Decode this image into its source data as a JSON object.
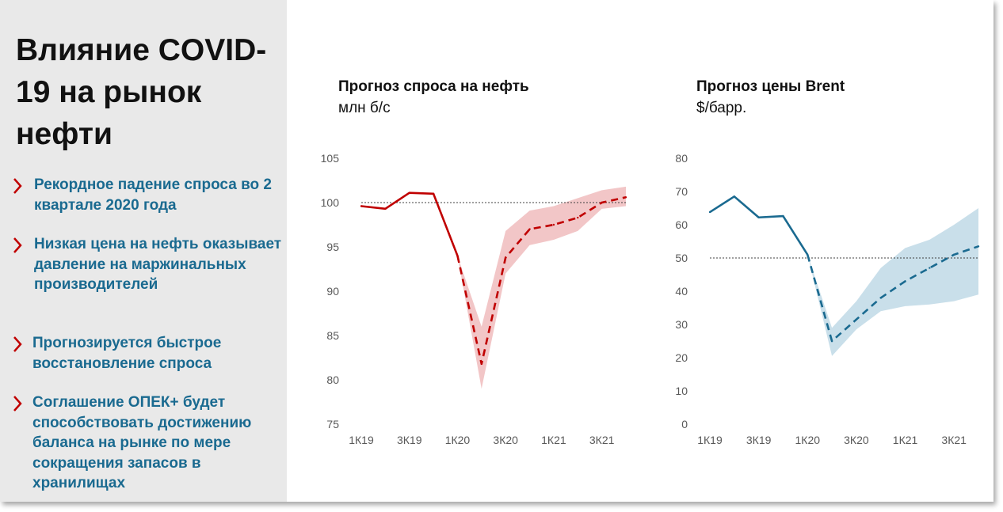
{
  "slide": {
    "title": "Влияние COVID-19 на рынок нефти",
    "bullets": [
      {
        "text": "Рекордное падение спроса во 2 квартале 2020 года"
      },
      {
        "text": "Низкая цена на нефть оказывает давление на маржинальных производителей"
      },
      {
        "text": "Прогнозируется быстрое восстановление спроса"
      },
      {
        "text": "Соглашение ОПЕК+ будет способствовать достижению баланса на рынке по мере сокращения запасов в хранилищах"
      }
    ],
    "colors": {
      "accent": "#c00000",
      "bullet_text": "#1a6a90",
      "panel": "#e9e9e9"
    },
    "bullet_icon": "chevron-right-icon"
  },
  "chart_data": [
    {
      "type": "line",
      "title": "Прогноз спроса на нефть",
      "unit": "млн б/с",
      "x": [
        "1К19",
        "2К19",
        "3К19",
        "4К19",
        "1К20",
        "2К20",
        "3К20",
        "4К20",
        "1К21",
        "2К21",
        "3К21",
        "4К21"
      ],
      "tick_labels": [
        "1К19",
        "",
        "3К19",
        "",
        "1К20",
        "",
        "3К20",
        "",
        "1К21",
        "",
        "3К21",
        ""
      ],
      "series": [
        {
          "values": [
            99.6,
            99.3,
            101.1,
            101.0,
            94.0,
            81.8,
            93.8,
            97.0,
            97.5,
            98.3,
            100.0,
            100.6
          ]
        }
      ],
      "actual_count": 5,
      "band": {
        "upper": [
          null,
          null,
          null,
          null,
          94.0,
          86.0,
          96.8,
          99.1,
          99.6,
          100.5,
          101.4,
          101.8
        ],
        "lower": [
          null,
          null,
          null,
          null,
          94.0,
          79.0,
          92.0,
          95.2,
          95.8,
          96.8,
          99.3,
          99.6
        ]
      },
      "reference_line": 100,
      "ylim": [
        75,
        105
      ],
      "yticks": [
        75,
        80,
        85,
        90,
        95,
        100,
        105
      ],
      "colors": {
        "line": "#c00000",
        "band": "#f2c6c7"
      },
      "grid": false,
      "legend": "none"
    },
    {
      "type": "line",
      "title": "Прогноз цены Brent",
      "unit": "$/барр.",
      "x": [
        "1К19",
        "2К19",
        "3К19",
        "4К19",
        "1К20",
        "2К20",
        "3К20",
        "4К20",
        "1К21",
        "2К21",
        "3К21",
        "4К21"
      ],
      "tick_labels": [
        "1К19",
        "",
        "3К19",
        "",
        "1К20",
        "",
        "3К20",
        "",
        "1К21",
        "",
        "3К21",
        ""
      ],
      "series": [
        {
          "values": [
            63.8,
            68.5,
            62.2,
            62.6,
            51.0,
            25.0,
            31.5,
            38.0,
            43.0,
            47.0,
            51.0,
            53.5
          ]
        }
      ],
      "actual_count": 5,
      "band": {
        "upper": [
          null,
          null,
          null,
          null,
          51.0,
          29.0,
          37.0,
          47.0,
          53.0,
          55.5,
          60.0,
          65.0
        ],
        "lower": [
          null,
          null,
          null,
          null,
          51.0,
          20.5,
          28.5,
          34.0,
          35.5,
          36.0,
          37.0,
          39.0
        ]
      },
      "reference_line": 50,
      "ylim": [
        0,
        80
      ],
      "yticks": [
        0,
        10,
        20,
        30,
        40,
        50,
        60,
        70,
        80
      ],
      "colors": {
        "line": "#1a6a90",
        "band": "#c9dfea"
      },
      "grid": false,
      "legend": "none"
    }
  ]
}
